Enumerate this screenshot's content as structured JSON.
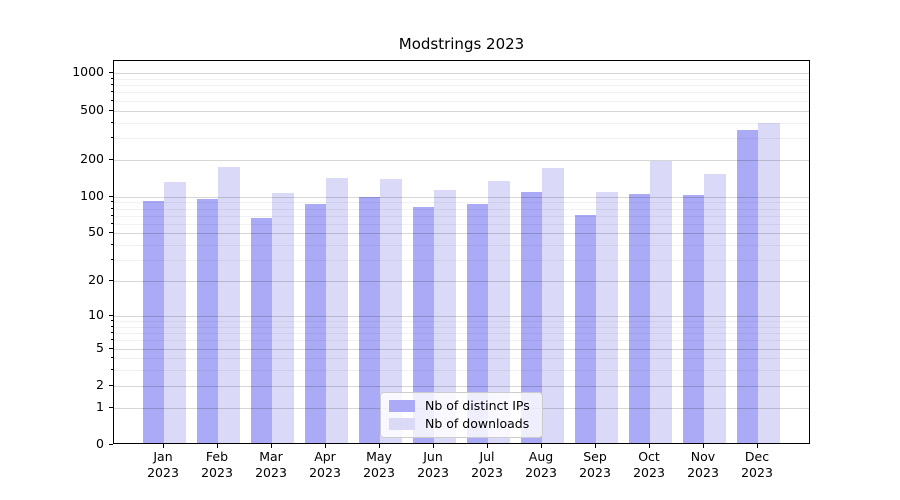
{
  "chart_data": {
    "type": "bar",
    "title": "Modstrings 2023",
    "year_label": "2023",
    "categories": [
      "Jan",
      "Feb",
      "Mar",
      "Apr",
      "May",
      "Jun",
      "Jul",
      "Aug",
      "Sep",
      "Oct",
      "Nov",
      "Dec"
    ],
    "series": [
      {
        "name": "Nb of distinct IPs",
        "color": "#aaaaf6",
        "values": [
          89,
          93,
          64,
          84,
          95,
          79,
          84,
          106,
          68,
          102,
          100,
          337
        ]
      },
      {
        "name": "Nb of downloads",
        "color": "#dadaf8",
        "values": [
          127,
          169,
          104,
          136,
          134,
          110,
          130,
          165,
          105,
          188,
          148,
          385
        ]
      }
    ],
    "yticks": [
      0,
      1,
      2,
      5,
      10,
      20,
      50,
      100,
      200,
      500,
      1000
    ],
    "y_minor_ticks": [
      3,
      4,
      6,
      7,
      8,
      9,
      30,
      40,
      60,
      70,
      80,
      90,
      300,
      400,
      600,
      700,
      800,
      900
    ],
    "yaxis": {
      "scale": "log1p",
      "min": 0,
      "max": 1256
    },
    "grid": "on",
    "legend_position": "lower center"
  }
}
